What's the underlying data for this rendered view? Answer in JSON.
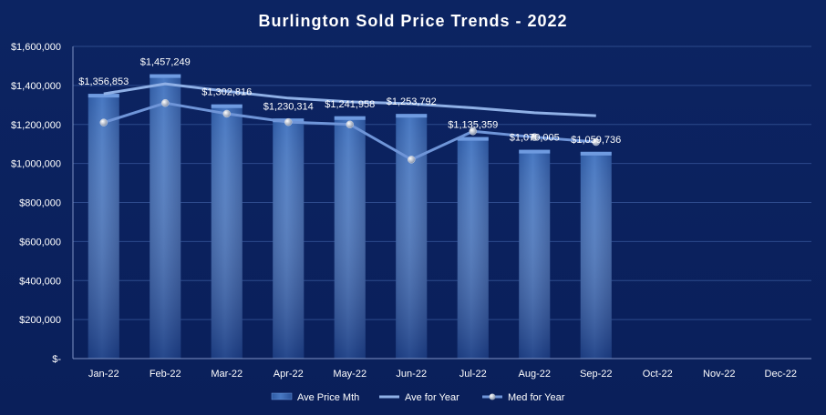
{
  "chart_data": {
    "type": "bar",
    "title": "Burlington  Sold  Price  Trends  -  2022",
    "categories": [
      "Jan-22",
      "Feb-22",
      "Mar-22",
      "Apr-22",
      "May-22",
      "Jun-22",
      "Jul-22",
      "Aug-22",
      "Sep-22",
      "Oct-22",
      "Nov-22",
      "Dec-22"
    ],
    "ylim": [
      0,
      1600000
    ],
    "yticks": [
      0,
      200000,
      400000,
      600000,
      800000,
      1000000,
      1200000,
      1400000,
      1600000
    ],
    "ytick_labels": [
      "$-",
      "$200,000",
      "$400,000",
      "$600,000",
      "$800,000",
      "$1,000,000",
      "$1,200,000",
      "$1,400,000",
      "$1,600,000"
    ],
    "grid": true,
    "legend_position": "bottom",
    "series": [
      {
        "name": "Ave Price Mth",
        "kind": "bar",
        "color": "#3d6db5",
        "values": [
          1356853,
          1457249,
          1302816,
          1230314,
          1241958,
          1253792,
          1135359,
          1070005,
          1059736,
          null,
          null,
          null
        ],
        "labels": [
          "$1,356,853",
          "$1,457,249",
          "$1,302,816",
          "$1,230,314",
          "$1,241,958",
          "$1,253,792",
          "$1,135,359",
          "$1,070,005",
          "$1,059,736",
          "",
          "",
          ""
        ]
      },
      {
        "name": "Ave for Year",
        "kind": "line",
        "color": "#8fb0e6",
        "values": [
          1356853,
          1408000,
          1370000,
          1335000,
          1316000,
          1306000,
          1285000,
          1260000,
          1245000,
          null,
          null,
          null
        ]
      },
      {
        "name": "Med for Year",
        "kind": "line-marker",
        "color": "#6f95d8",
        "values": [
          1210000,
          1310000,
          1255000,
          1212000,
          1200000,
          1020000,
          1165000,
          1135000,
          1110000,
          null,
          null,
          null
        ]
      }
    ]
  }
}
